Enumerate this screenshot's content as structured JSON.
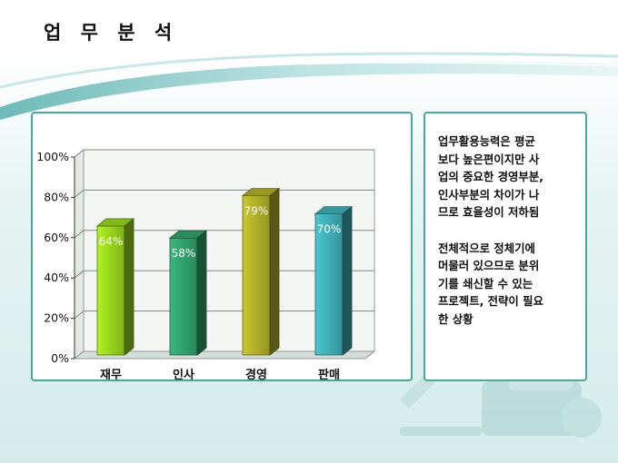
{
  "slide": {
    "title": "업 무 분 석",
    "colors": {
      "accent_border": "#4aa6a2",
      "swoosh": "#9fd4d3"
    }
  },
  "text_panel": {
    "paragraph1": "업무활용능력은 평균\n보다 높은편이지만 사\n업의 중요한 경영부분,\n인사부분의 차이가 나\n므로 효율성이 저하됨",
    "paragraph2": "전체적으로 정체기에\n머물러 있으므로 분위\n기를 쇄신할 수 있는\n프로젝트, 전략이 필요\n한 상황"
  },
  "chart_data": {
    "type": "bar",
    "categories": [
      "재무",
      "인사",
      "경영",
      "판매"
    ],
    "values": [
      64,
      58,
      79,
      70
    ],
    "data_labels": [
      "64%",
      "58%",
      "79%",
      "70%"
    ],
    "yticks": [
      "0%",
      "20%",
      "40%",
      "60%",
      "80%",
      "100%"
    ],
    "ylim": [
      0,
      100
    ],
    "grid": true,
    "bar_style": "3d-column",
    "colors": [
      "#8ac21a",
      "#2e9363",
      "#a1a026",
      "#3a9fa5"
    ]
  }
}
